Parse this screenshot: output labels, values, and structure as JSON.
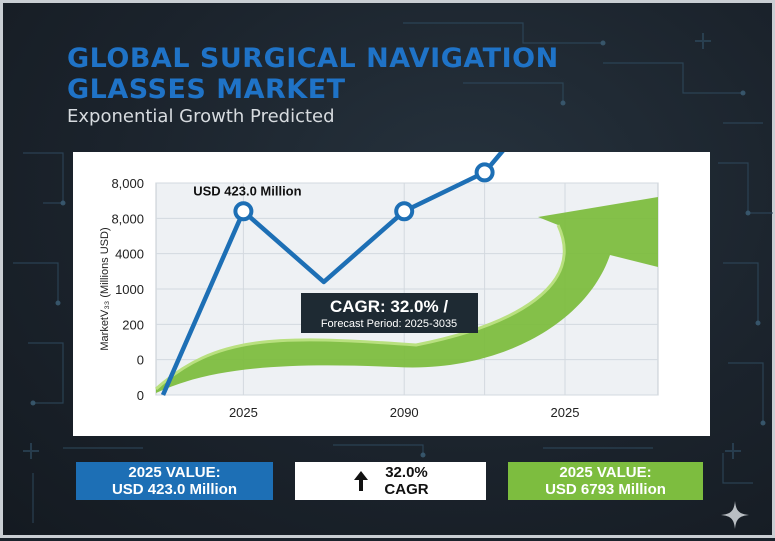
{
  "title": "GLOBAL SURGICAL NAVIGATION GLASSES MARKET",
  "subtitle": "Exponential Growth Predicted",
  "chart_data": {
    "type": "line",
    "ylabel": "MarketV₃₃ (Millions USD)",
    "xlabel": "",
    "y_tick_labels": [
      "0",
      "0",
      "200",
      "1000",
      "4000",
      "8,000",
      "8,000"
    ],
    "x_tick_labels": [
      "2025",
      "2090",
      "2025"
    ],
    "grid": true,
    "series": [
      {
        "values": [
          0,
          5.2,
          3.2,
          5.2,
          6.3,
          9.0
        ],
        "color": "#1d6fb5"
      }
    ],
    "marker_points": [
      1,
      3,
      4,
      5
    ],
    "annotations": [
      {
        "text": "USD 423.0 Million",
        "point": 1
      },
      {
        "text": "USD 6,793 Million",
        "point": 5
      }
    ],
    "callout": {
      "main": "CAGR: 32.0% /",
      "sub": "Forecast Period: 2025-3035"
    },
    "arrow_color": "#7dbd3f"
  },
  "cards": {
    "left": {
      "line1": "2025 VALUE:",
      "line2": "USD 423.0 Million"
    },
    "mid": {
      "line1": "32.0%",
      "line2": "CAGR",
      "icon": "arrow-up-icon"
    },
    "right": {
      "line1": "2025 VALUE:",
      "line2": "USD 6793 Million"
    }
  }
}
